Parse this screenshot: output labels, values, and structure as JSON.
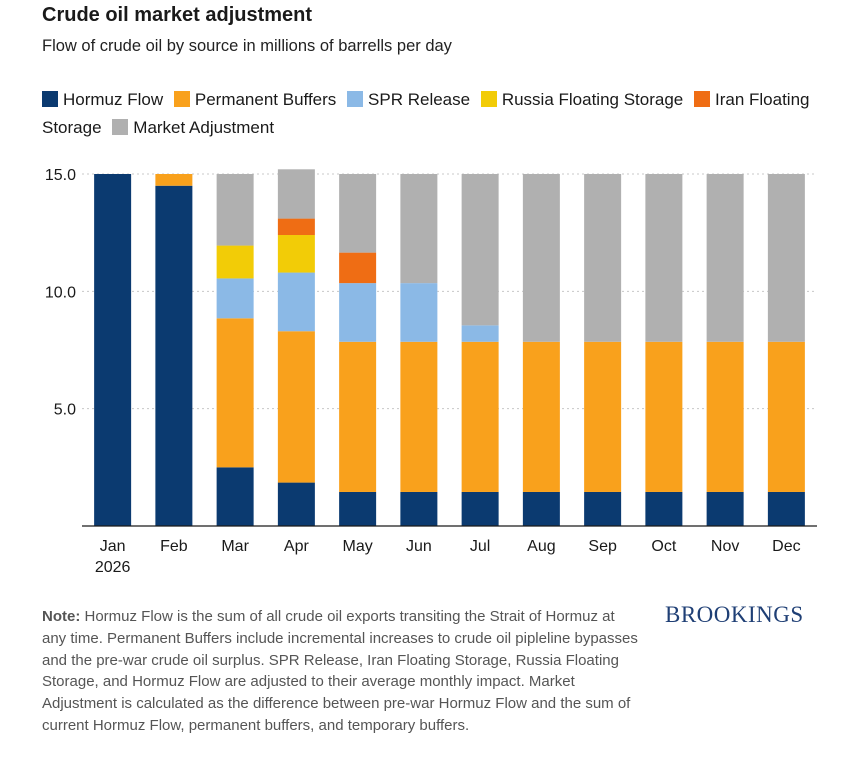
{
  "title": "Crude oil market adjustment",
  "subtitle": "Flow of crude oil by source in millions of barrells per day",
  "note": {
    "label": "Note:",
    "text": " Hormuz Flow is the sum of all crude oil exports transiting the Strait of Hormuz at any time. Permanent Buffers include incremental increases to crude oil pipleline bypasses and the pre-war crude oil surplus. SPR Release, Iran Floating Storage, Russia Floating Storage, and Hormuz Flow are adjusted to their average monthly impact. Market Adjustment is calculated as the difference between pre-war Hormuz Flow and the sum of current Hormuz Flow, permanent buffers, and temporary buffers."
  },
  "brand": "BROOKINGS",
  "chart_data": {
    "type": "bar",
    "stacked": true,
    "categories": [
      "Jan\n2026",
      "Feb",
      "Mar",
      "Apr",
      "May",
      "Jun",
      "Jul",
      "Aug",
      "Sep",
      "Oct",
      "Nov",
      "Dec"
    ],
    "ylim": [
      0,
      15
    ],
    "yticks": [
      "5.0",
      "10.0",
      "15.0"
    ],
    "ytick_values": [
      5,
      10,
      15
    ],
    "grid": true,
    "legend_position": "top",
    "series": [
      {
        "name": "Hormuz Flow",
        "color": "#0b3a70",
        "values": [
          15,
          14.5,
          2.5,
          1.85,
          1.45,
          1.45,
          1.45,
          1.45,
          1.45,
          1.45,
          1.45,
          1.45
        ]
      },
      {
        "name": "Permanent Buffers",
        "color": "#f9a11c",
        "values": [
          0,
          0.5,
          6.35,
          6.45,
          6.4,
          6.4,
          6.4,
          6.4,
          6.4,
          6.4,
          6.4,
          6.4
        ]
      },
      {
        "name": "SPR Release",
        "color": "#8bb9e6",
        "values": [
          0,
          0,
          1.7,
          2.5,
          2.5,
          2.5,
          0.7,
          0,
          0,
          0,
          0,
          0
        ]
      },
      {
        "name": "Russia Floating Storage",
        "color": "#f2cc07",
        "values": [
          0,
          0,
          1.4,
          1.6,
          0,
          0,
          0,
          0,
          0,
          0,
          0,
          0
        ]
      },
      {
        "name": "Iran Floating Storage",
        "color": "#ef6d14",
        "values": [
          0,
          0,
          0,
          0.7,
          1.3,
          0,
          0,
          0,
          0,
          0,
          0,
          0
        ]
      },
      {
        "name": "Market Adjustment",
        "color": "#b0b0b0",
        "values": [
          0,
          0,
          3.05,
          2.1,
          3.35,
          4.65,
          6.45,
          7.15,
          7.15,
          7.15,
          7.15,
          7.15
        ]
      }
    ]
  }
}
